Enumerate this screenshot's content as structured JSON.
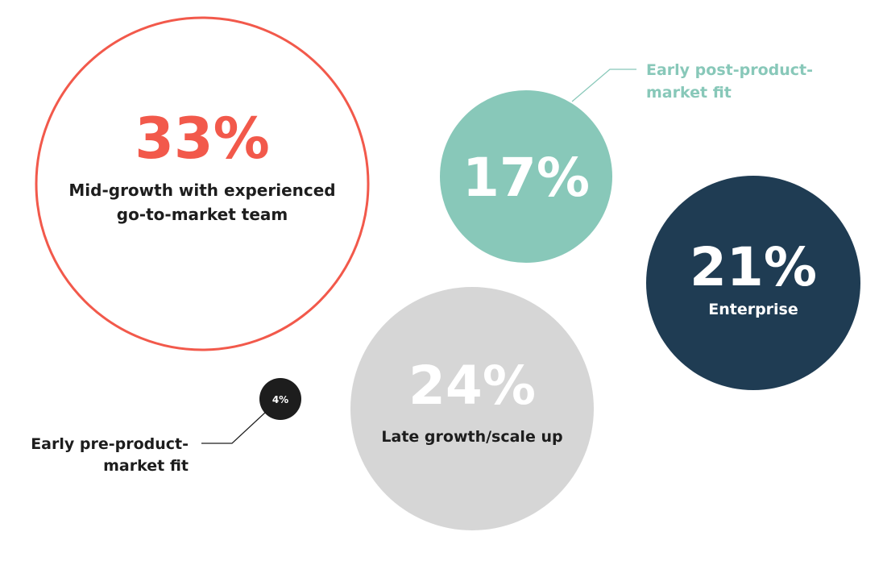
{
  "chart_data": {
    "type": "bubble",
    "bubbles": [
      {
        "id": "mid-growth",
        "value": 33,
        "value_label": "33%",
        "label_lines": [
          "Mid-growth with experienced",
          "go-to-market team"
        ],
        "style": "outline",
        "color": "#f2594b",
        "text_color": "#1d1d1d"
      },
      {
        "id": "early-post-pmf",
        "value": 17,
        "value_label": "17%",
        "label_lines": [
          "Early post-product-",
          "market fit"
        ],
        "label_position": "outside-callout",
        "style": "filled",
        "color": "#88c8b9",
        "text_color": "#ffffff",
        "callout_color": "#88c8b9"
      },
      {
        "id": "enterprise",
        "value": 21,
        "value_label": "21%",
        "label_lines": [
          "Enterprise"
        ],
        "style": "filled",
        "color": "#1f3c53",
        "text_color": "#ffffff"
      },
      {
        "id": "late-growth",
        "value": 24,
        "value_label": "24%",
        "label_lines": [
          "Late growth/scale up"
        ],
        "style": "filled",
        "color": "#d6d6d6",
        "text_color": "#ffffff",
        "label_color": "#1d1d1d"
      },
      {
        "id": "early-pre-pmf",
        "value": 4,
        "value_label": "4%",
        "label_lines": [
          "Early pre-product-",
          "market fit"
        ],
        "label_position": "outside-callout",
        "style": "filled",
        "color": "#1d1d1d",
        "text_color": "#ffffff",
        "callout_color": "#1d1d1d"
      }
    ]
  }
}
